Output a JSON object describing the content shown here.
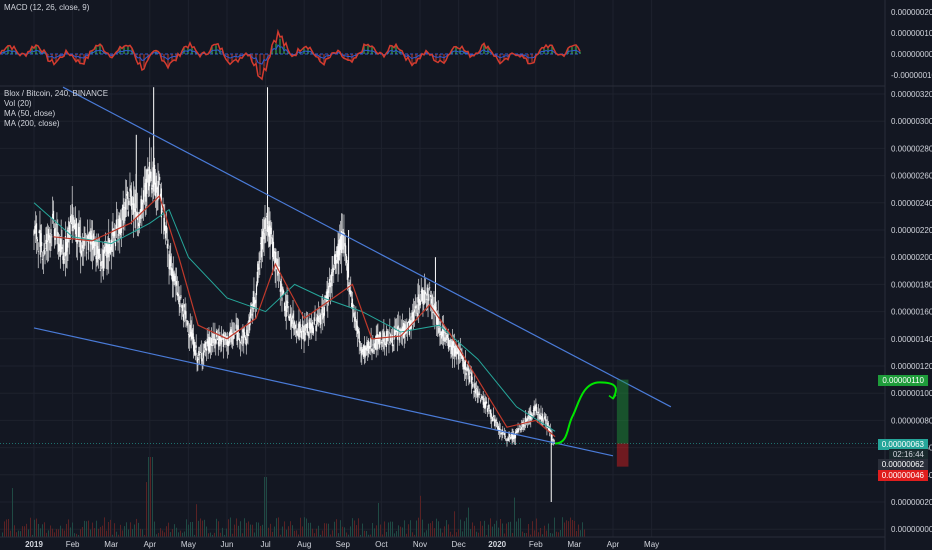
{
  "macd_panel": {
    "title": "MACD (12, 26, close, 9)",
    "ticks": [
      "0.00000020",
      "0.00000010",
      "0.00000000",
      "-0.00000010"
    ]
  },
  "main_panel": {
    "legend": [
      "Blox / Bitcoin, 240, BINANCE",
      "Vol (20)",
      "MA (50, close)",
      "MA (200, close)"
    ],
    "price_ticks": [
      "0.00000320",
      "0.00000300",
      "0.00000280",
      "0.00000260",
      "0.00000240",
      "0.00000220",
      "0.00000200",
      "0.00000180",
      "0.00000160",
      "0.00000140",
      "0.00000120",
      "0.00000100",
      "0.00000080",
      "0.00000060",
      "0.00000040",
      "0.00000020",
      "0.00000000",
      "-0.00000000"
    ],
    "badges": {
      "target": "0.00000110",
      "current": "0.00000063",
      "countdown": "02:16:44",
      "mid": "0.00000062",
      "stop": "0.00000046"
    }
  },
  "time_axis": [
    "2019",
    "Feb",
    "Mar",
    "Apr",
    "May",
    "Jun",
    "Jul",
    "Aug",
    "Sep",
    "Oct",
    "Nov",
    "Dec",
    "2020",
    "Feb",
    "Mar",
    "Apr",
    "May"
  ],
  "colors": {
    "background": "#131722",
    "text": "#d1d4dc",
    "grid": "#1e222d",
    "candle": "#ffffff",
    "ma50": "#c0392b",
    "ma200": "#26a69a",
    "trendline": "#4a7bd8",
    "projection": "#00e600",
    "badge_green": "#1e9c3a",
    "badge_teal": "#26a69a",
    "badge_red": "#e01e1e",
    "macd_line": "#d33b2f",
    "macd_signal": "#2d5bd6",
    "macd_hist": "#3fb950"
  },
  "chart_data": {
    "type": "line",
    "price_unit": "BTC",
    "x_axis_ticks": [
      "2019",
      "Feb",
      "Mar",
      "Apr",
      "May",
      "Jun",
      "Jul",
      "Aug",
      "Sep",
      "Oct",
      "Nov",
      "Dec",
      "2020",
      "Feb",
      "Mar",
      "Apr",
      "May"
    ],
    "x_months_index": [
      0,
      1,
      2,
      3,
      4,
      5,
      6,
      7,
      8,
      9,
      10,
      11,
      12,
      13,
      14,
      15,
      16
    ],
    "price_points": [
      {
        "m": 0.0,
        "p": 2.2e-06
      },
      {
        "m": 0.25,
        "p": 2.05e-06
      },
      {
        "m": 0.5,
        "p": 2.25e-06
      },
      {
        "m": 0.75,
        "p": 2e-06
      },
      {
        "m": 1.0,
        "p": 2.3e-06
      },
      {
        "m": 1.25,
        "p": 2.05e-06
      },
      {
        "m": 1.5,
        "p": 2.15e-06
      },
      {
        "m": 1.75,
        "p": 1.95e-06
      },
      {
        "m": 2.0,
        "p": 2.1e-06
      },
      {
        "m": 2.25,
        "p": 2.25e-06
      },
      {
        "m": 2.5,
        "p": 2.45e-06
      },
      {
        "m": 2.75,
        "p": 2.3e-06
      },
      {
        "m": 3.0,
        "p": 2.65e-06
      },
      {
        "m": 3.25,
        "p": 2.5e-06
      },
      {
        "m": 3.5,
        "p": 2e-06
      },
      {
        "m": 3.75,
        "p": 1.7e-06
      },
      {
        "m": 4.0,
        "p": 1.5e-06
      },
      {
        "m": 4.25,
        "p": 1.25e-06
      },
      {
        "m": 4.5,
        "p": 1.35e-06
      },
      {
        "m": 4.75,
        "p": 1.4e-06
      },
      {
        "m": 5.0,
        "p": 1.38e-06
      },
      {
        "m": 5.25,
        "p": 1.45e-06
      },
      {
        "m": 5.5,
        "p": 1.4e-06
      },
      {
        "m": 5.75,
        "p": 1.75e-06
      },
      {
        "m": 6.0,
        "p": 2.3e-06
      },
      {
        "m": 6.25,
        "p": 2e-06
      },
      {
        "m": 6.5,
        "p": 1.65e-06
      },
      {
        "m": 6.75,
        "p": 1.5e-06
      },
      {
        "m": 7.0,
        "p": 1.45e-06
      },
      {
        "m": 7.25,
        "p": 1.5e-06
      },
      {
        "m": 7.5,
        "p": 1.6e-06
      },
      {
        "m": 7.75,
        "p": 1.9e-06
      },
      {
        "m": 8.0,
        "p": 2.15e-06
      },
      {
        "m": 8.25,
        "p": 1.65e-06
      },
      {
        "m": 8.5,
        "p": 1.3e-06
      },
      {
        "m": 8.75,
        "p": 1.35e-06
      },
      {
        "m": 9.0,
        "p": 1.4e-06
      },
      {
        "m": 9.25,
        "p": 1.4e-06
      },
      {
        "m": 9.5,
        "p": 1.45e-06
      },
      {
        "m": 9.75,
        "p": 1.5e-06
      },
      {
        "m": 10.0,
        "p": 1.7e-06
      },
      {
        "m": 10.25,
        "p": 1.75e-06
      },
      {
        "m": 10.5,
        "p": 1.5e-06
      },
      {
        "m": 10.75,
        "p": 1.35e-06
      },
      {
        "m": 11.0,
        "p": 1.3e-06
      },
      {
        "m": 11.25,
        "p": 1.15e-06
      },
      {
        "m": 11.5,
        "p": 1e-06
      },
      {
        "m": 11.75,
        "p": 9e-07
      },
      {
        "m": 12.0,
        "p": 7.5e-07
      },
      {
        "m": 12.25,
        "p": 6.6e-07
      },
      {
        "m": 12.5,
        "p": 7e-07
      },
      {
        "m": 12.75,
        "p": 8e-07
      },
      {
        "m": 13.0,
        "p": 8.8e-07
      },
      {
        "m": 13.25,
        "p": 8e-07
      },
      {
        "m": 13.5,
        "p": 6.3e-07
      }
    ],
    "ma50_points": [
      {
        "m": 0.5,
        "p": 2.15e-06
      },
      {
        "m": 1.5,
        "p": 2.12e-06
      },
      {
        "m": 2.5,
        "p": 2.25e-06
      },
      {
        "m": 3.25,
        "p": 2.45e-06
      },
      {
        "m": 3.75,
        "p": 2e-06
      },
      {
        "m": 4.25,
        "p": 1.5e-06
      },
      {
        "m": 5.0,
        "p": 1.4e-06
      },
      {
        "m": 5.75,
        "p": 1.55e-06
      },
      {
        "m": 6.25,
        "p": 1.95e-06
      },
      {
        "m": 7.0,
        "p": 1.55e-06
      },
      {
        "m": 7.75,
        "p": 1.7e-06
      },
      {
        "m": 8.25,
        "p": 1.8e-06
      },
      {
        "m": 8.75,
        "p": 1.4e-06
      },
      {
        "m": 9.5,
        "p": 1.42e-06
      },
      {
        "m": 10.25,
        "p": 1.65e-06
      },
      {
        "m": 10.75,
        "p": 1.45e-06
      },
      {
        "m": 11.5,
        "p": 1.1e-06
      },
      {
        "m": 12.25,
        "p": 7.5e-07
      },
      {
        "m": 13.0,
        "p": 8e-07
      },
      {
        "m": 13.5,
        "p": 6.8e-07
      }
    ],
    "ma200_points": [
      {
        "m": 0.0,
        "p": 2.4e-06
      },
      {
        "m": 1.0,
        "p": 2.15e-06
      },
      {
        "m": 2.0,
        "p": 2.1e-06
      },
      {
        "m": 3.0,
        "p": 2.25e-06
      },
      {
        "m": 3.5,
        "p": 2.35e-06
      },
      {
        "m": 4.0,
        "p": 2e-06
      },
      {
        "m": 5.0,
        "p": 1.7e-06
      },
      {
        "m": 6.0,
        "p": 1.6e-06
      },
      {
        "m": 6.75,
        "p": 1.8e-06
      },
      {
        "m": 7.5,
        "p": 1.7e-06
      },
      {
        "m": 8.5,
        "p": 1.6e-06
      },
      {
        "m": 9.5,
        "p": 1.45e-06
      },
      {
        "m": 10.5,
        "p": 1.5e-06
      },
      {
        "m": 11.5,
        "p": 1.25e-06
      },
      {
        "m": 12.5,
        "p": 9e-07
      },
      {
        "m": 13.5,
        "p": 7.2e-07
      }
    ],
    "upper_trendline": [
      {
        "m": 0.75,
        "p": 3.25e-06
      },
      {
        "m": 16.5,
        "p": 9e-07
      }
    ],
    "lower_trendline": [
      {
        "m": 0.0,
        "p": 1.48e-06
      },
      {
        "m": 15.0,
        "p": 5.4e-07
      }
    ],
    "projection_path": [
      {
        "m": 13.5,
        "p": 6.3e-07
      },
      {
        "m": 13.85,
        "p": 7.5e-07
      },
      {
        "m": 14.3,
        "p": 1e-06
      },
      {
        "m": 14.75,
        "p": 1.08e-06
      },
      {
        "m": 15.0,
        "p": 9.6e-07
      }
    ],
    "spikes": [
      {
        "m": 3.1,
        "p": 3.25e-06
      },
      {
        "m": 6.05,
        "p": 3.25e-06
      },
      {
        "m": 10.4,
        "p": 2e-06
      },
      {
        "m": 8.15,
        "p": 2.2e-06
      },
      {
        "m": 2.65,
        "p": 2.9e-06
      },
      {
        "m": 13.4,
        "p": 2e-07
      }
    ],
    "position_box": {
      "entry": 6.3e-07,
      "target": 1.1e-06,
      "stop": 4.6e-07,
      "start_m": 15.1,
      "end_m": 15.4
    },
    "current_price": 6.3e-07,
    "ylim": [
      0.0,
      3.3e-06
    ]
  }
}
